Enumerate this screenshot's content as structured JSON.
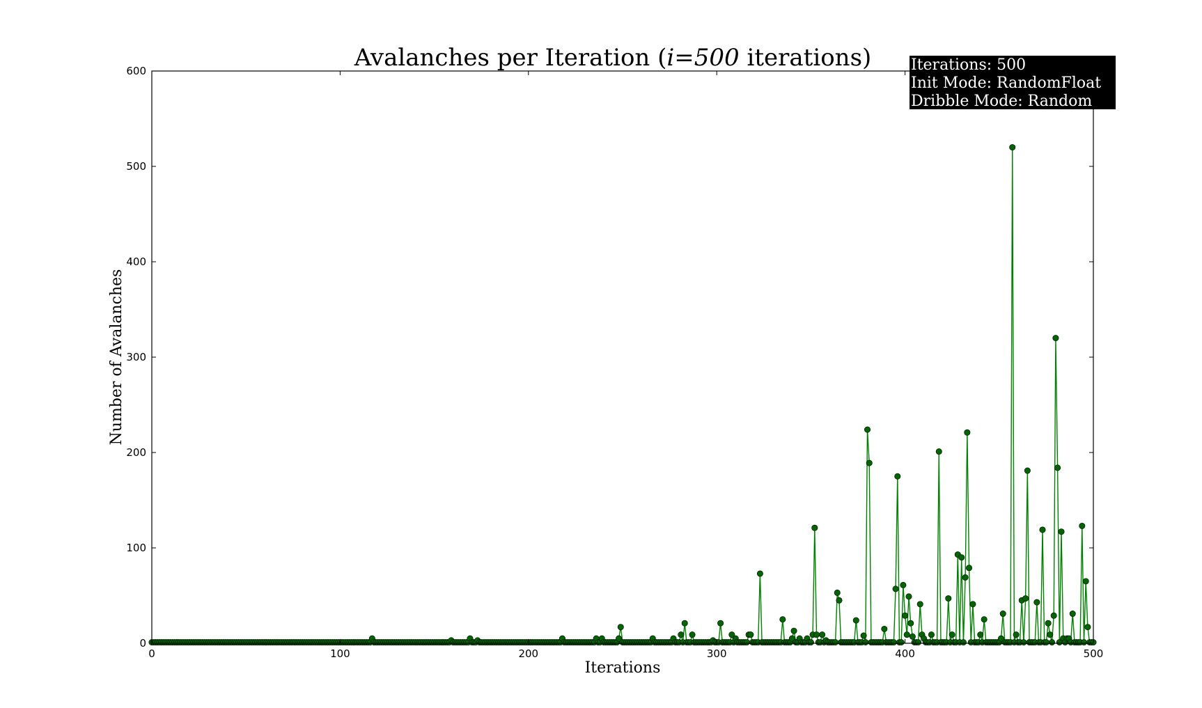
{
  "chart_data": {
    "type": "line",
    "title": "Avalanches per Iteration (",
    "title_math": "i=500",
    "title_suffix": " iterations)",
    "xlabel": "Iterations",
    "ylabel": "Number of Avalanches",
    "xlim": [
      0,
      500
    ],
    "ylim": [
      0,
      600
    ],
    "xticks": [
      "0",
      "100",
      "200",
      "300",
      "400",
      "500"
    ],
    "yticks": [
      "0",
      "100",
      "200",
      "300",
      "400",
      "500",
      "600"
    ],
    "grid": false,
    "line_color": "#008000",
    "marker_color": "#006400",
    "info_box": {
      "placement": "top-right",
      "lines": [
        "Iterations: 500",
        "Init Mode: RandomFloat",
        "Dribble Mode: Random"
      ]
    },
    "baseline": 1,
    "points": [
      [
        117,
        5
      ],
      [
        159,
        3
      ],
      [
        169,
        5
      ],
      [
        173,
        3
      ],
      [
        218,
        5
      ],
      [
        236,
        5
      ],
      [
        239,
        5
      ],
      [
        248,
        5
      ],
      [
        249,
        17
      ],
      [
        266,
        5
      ],
      [
        277,
        5
      ],
      [
        281,
        9
      ],
      [
        283,
        21
      ],
      [
        287,
        9
      ],
      [
        298,
        3
      ],
      [
        302,
        21
      ],
      [
        308,
        9
      ],
      [
        310,
        5
      ],
      [
        317,
        9
      ],
      [
        318,
        9
      ],
      [
        323,
        73
      ],
      [
        335,
        25
      ],
      [
        340,
        5
      ],
      [
        341,
        13
      ],
      [
        344,
        5
      ],
      [
        348,
        5
      ],
      [
        351,
        9
      ],
      [
        352,
        121
      ],
      [
        353,
        9
      ],
      [
        356,
        9
      ],
      [
        358,
        3
      ],
      [
        364,
        53
      ],
      [
        365,
        45
      ],
      [
        374,
        24
      ],
      [
        378,
        8
      ],
      [
        380,
        224
      ],
      [
        381,
        189
      ],
      [
        389,
        15
      ],
      [
        395,
        57
      ],
      [
        396,
        175
      ],
      [
        399,
        61
      ],
      [
        400,
        29
      ],
      [
        401,
        9
      ],
      [
        402,
        49
      ],
      [
        403,
        21
      ],
      [
        404,
        7
      ],
      [
        408,
        41
      ],
      [
        409,
        9
      ],
      [
        410,
        5
      ],
      [
        414,
        9
      ],
      [
        418,
        201
      ],
      [
        423,
        47
      ],
      [
        425,
        9
      ],
      [
        428,
        93
      ],
      [
        430,
        90
      ],
      [
        432,
        69
      ],
      [
        433,
        221
      ],
      [
        434,
        79
      ],
      [
        436,
        41
      ],
      [
        440,
        9
      ],
      [
        442,
        25
      ],
      [
        451,
        5
      ],
      [
        452,
        31
      ],
      [
        457,
        520
      ],
      [
        459,
        9
      ],
      [
        462,
        45
      ],
      [
        464,
        47
      ],
      [
        465,
        181
      ],
      [
        470,
        43
      ],
      [
        473,
        119
      ],
      [
        476,
        21
      ],
      [
        477,
        9
      ],
      [
        479,
        29
      ],
      [
        480,
        320
      ],
      [
        481,
        184
      ],
      [
        483,
        117
      ],
      [
        484,
        5
      ],
      [
        486,
        5
      ],
      [
        487,
        5
      ],
      [
        489,
        31
      ],
      [
        494,
        123
      ],
      [
        496,
        65
      ],
      [
        497,
        17
      ]
    ]
  }
}
